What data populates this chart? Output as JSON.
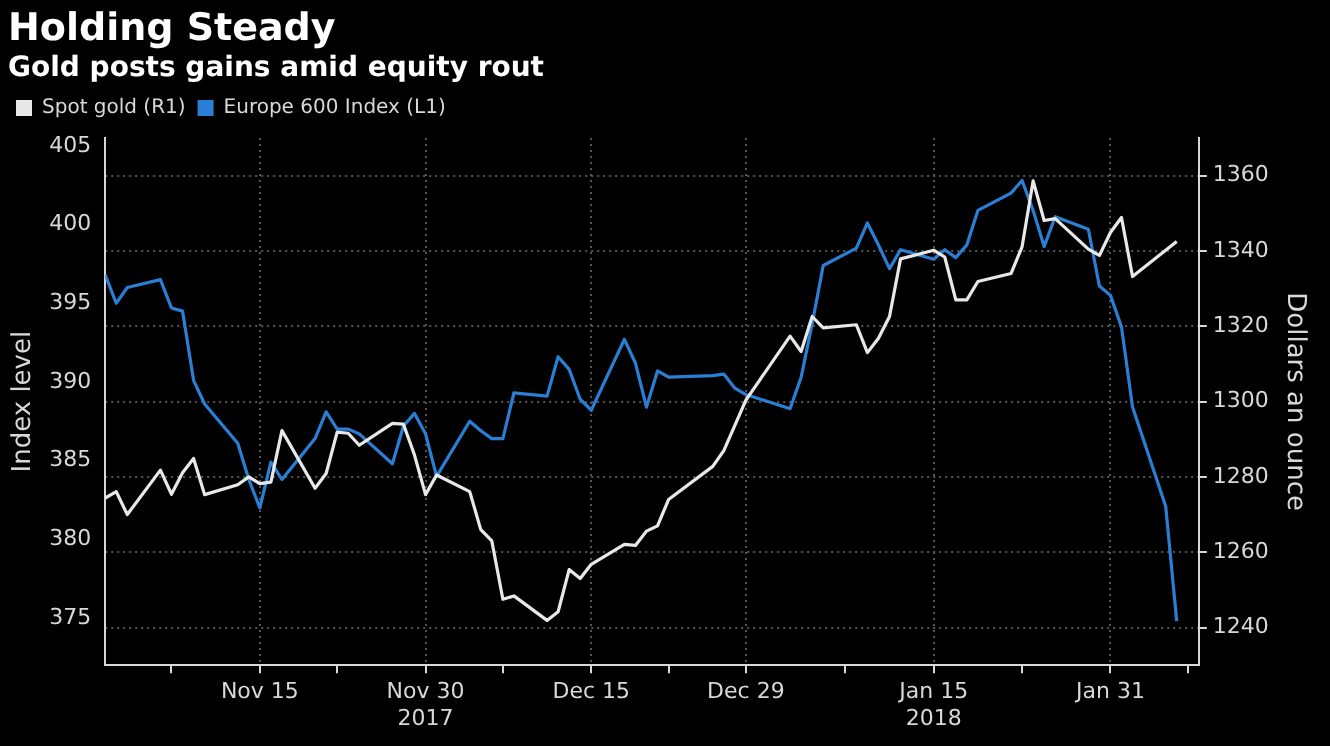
{
  "chart_data": {
    "type": "line",
    "title": "Holding Steady",
    "subtitle": "Gold posts gains amid equity rout",
    "ylabel": "Index level",
    "y2label": "Dollars an ounce",
    "x": [
      "2017-11-01",
      "2017-11-02",
      "2017-11-03",
      "2017-11-06",
      "2017-11-07",
      "2017-11-08",
      "2017-11-09",
      "2017-11-10",
      "2017-11-13",
      "2017-11-14",
      "2017-11-15",
      "2017-11-16",
      "2017-11-17",
      "2017-11-20",
      "2017-11-21",
      "2017-11-22",
      "2017-11-23",
      "2017-11-24",
      "2017-11-27",
      "2017-11-28",
      "2017-11-29",
      "2017-11-30",
      "2017-12-01",
      "2017-12-04",
      "2017-12-05",
      "2017-12-06",
      "2017-12-07",
      "2017-12-08",
      "2017-12-11",
      "2017-12-12",
      "2017-12-13",
      "2017-12-14",
      "2017-12-15",
      "2017-12-18",
      "2017-12-19",
      "2017-12-20",
      "2017-12-21",
      "2017-12-22",
      "2017-12-26",
      "2017-12-27",
      "2017-12-28",
      "2017-12-29",
      "2018-01-02",
      "2018-01-03",
      "2018-01-04",
      "2018-01-05",
      "2018-01-08",
      "2018-01-09",
      "2018-01-10",
      "2018-01-11",
      "2018-01-12",
      "2018-01-15",
      "2018-01-16",
      "2018-01-17",
      "2018-01-18",
      "2018-01-19",
      "2018-01-22",
      "2018-01-23",
      "2018-01-24",
      "2018-01-25",
      "2018-01-26",
      "2018-01-29",
      "2018-01-30",
      "2018-01-31",
      "2018-02-01",
      "2018-02-02",
      "2018-02-05",
      "2018-02-06"
    ],
    "series": [
      {
        "name": "Spot gold (R1)",
        "color": "#e8e8e8",
        "axis": "y2",
        "values": [
          1274.4,
          1276.1,
          1270.0,
          1281.8,
          1275.4,
          1281.1,
          1284.9,
          1275.3,
          1277.9,
          1280.0,
          1278.2,
          1278.6,
          1292.3,
          1277.0,
          1280.9,
          1291.9,
          1291.6,
          1288.4,
          1294.2,
          1294.0,
          1285.8,
          1275.3,
          1280.5,
          1276.1,
          1266.0,
          1263.0,
          1247.5,
          1248.4,
          1241.9,
          1244.2,
          1255.4,
          1253.0,
          1256.8,
          1262.1,
          1261.8,
          1265.6,
          1267.0,
          1274.0,
          1282.8,
          1287.0,
          1293.7,
          1300.4,
          1317.4,
          1313.3,
          1322.6,
          1319.6,
          1320.4,
          1313.0,
          1316.8,
          1322.6,
          1337.9,
          1340.2,
          1338.4,
          1327.0,
          1327.0,
          1331.9,
          1334.0,
          1341.1,
          1358.6,
          1348.1,
          1348.6,
          1340.5,
          1338.8,
          1344.9,
          1348.9,
          1333.2,
          1340.2,
          1342.5
        ]
      },
      {
        "name": "Europe 600 Index (L1)",
        "color": "#2a7fd4",
        "axis": "y",
        "values": [
          396.8,
          395.0,
          396.0,
          396.5,
          394.7,
          394.5,
          390.1,
          388.6,
          386.1,
          383.8,
          382.0,
          384.9,
          383.8,
          386.4,
          388.1,
          387.0,
          387.0,
          386.7,
          384.8,
          387.2,
          388.0,
          386.7,
          384.0,
          387.5,
          386.9,
          386.4,
          386.4,
          389.3,
          389.1,
          391.6,
          390.8,
          388.9,
          388.2,
          392.7,
          391.2,
          388.4,
          390.7,
          390.3,
          390.4,
          390.5,
          389.6,
          389.2,
          388.3,
          390.3,
          393.7,
          397.4,
          398.5,
          400.1,
          398.7,
          397.2,
          398.4,
          397.8,
          398.4,
          397.9,
          398.7,
          400.9,
          402.0,
          402.8,
          400.9,
          398.6,
          400.5,
          399.7,
          396.1,
          395.5,
          393.5,
          388.4,
          382.1,
          374.8
        ]
      }
    ],
    "xlim": [
      "2017-11-01",
      "2018-02-08"
    ],
    "xticks": [
      {
        "value": "2017-11-07",
        "label": null
      },
      {
        "value": "2017-11-15",
        "label": "Nov 15"
      },
      {
        "value": "2017-11-22",
        "label": null
      },
      {
        "value": "2017-11-30",
        "label": "Nov 30\n2017"
      },
      {
        "value": "2017-12-07",
        "label": null
      },
      {
        "value": "2017-12-15",
        "label": "Dec 15"
      },
      {
        "value": "2017-12-22",
        "label": null
      },
      {
        "value": "2017-12-29",
        "label": "Dec 29"
      },
      {
        "value": "2018-01-07",
        "label": null
      },
      {
        "value": "2018-01-15",
        "label": "Jan 15\n2018"
      },
      {
        "value": "2018-01-23",
        "label": null
      },
      {
        "value": "2018-01-31",
        "label": "Jan 31"
      },
      {
        "value": "2018-02-07",
        "label": null
      }
    ],
    "ylim": [
      372,
      405.5
    ],
    "yticks": [
      375,
      380,
      385,
      390,
      395,
      400,
      405
    ],
    "y2lim": [
      1230,
      1370
    ],
    "y2ticks": [
      1240,
      1260,
      1280,
      1300,
      1320,
      1340,
      1360
    ],
    "grid": true,
    "legend": "top left",
    "marker": "none",
    "line_style": "solid"
  }
}
